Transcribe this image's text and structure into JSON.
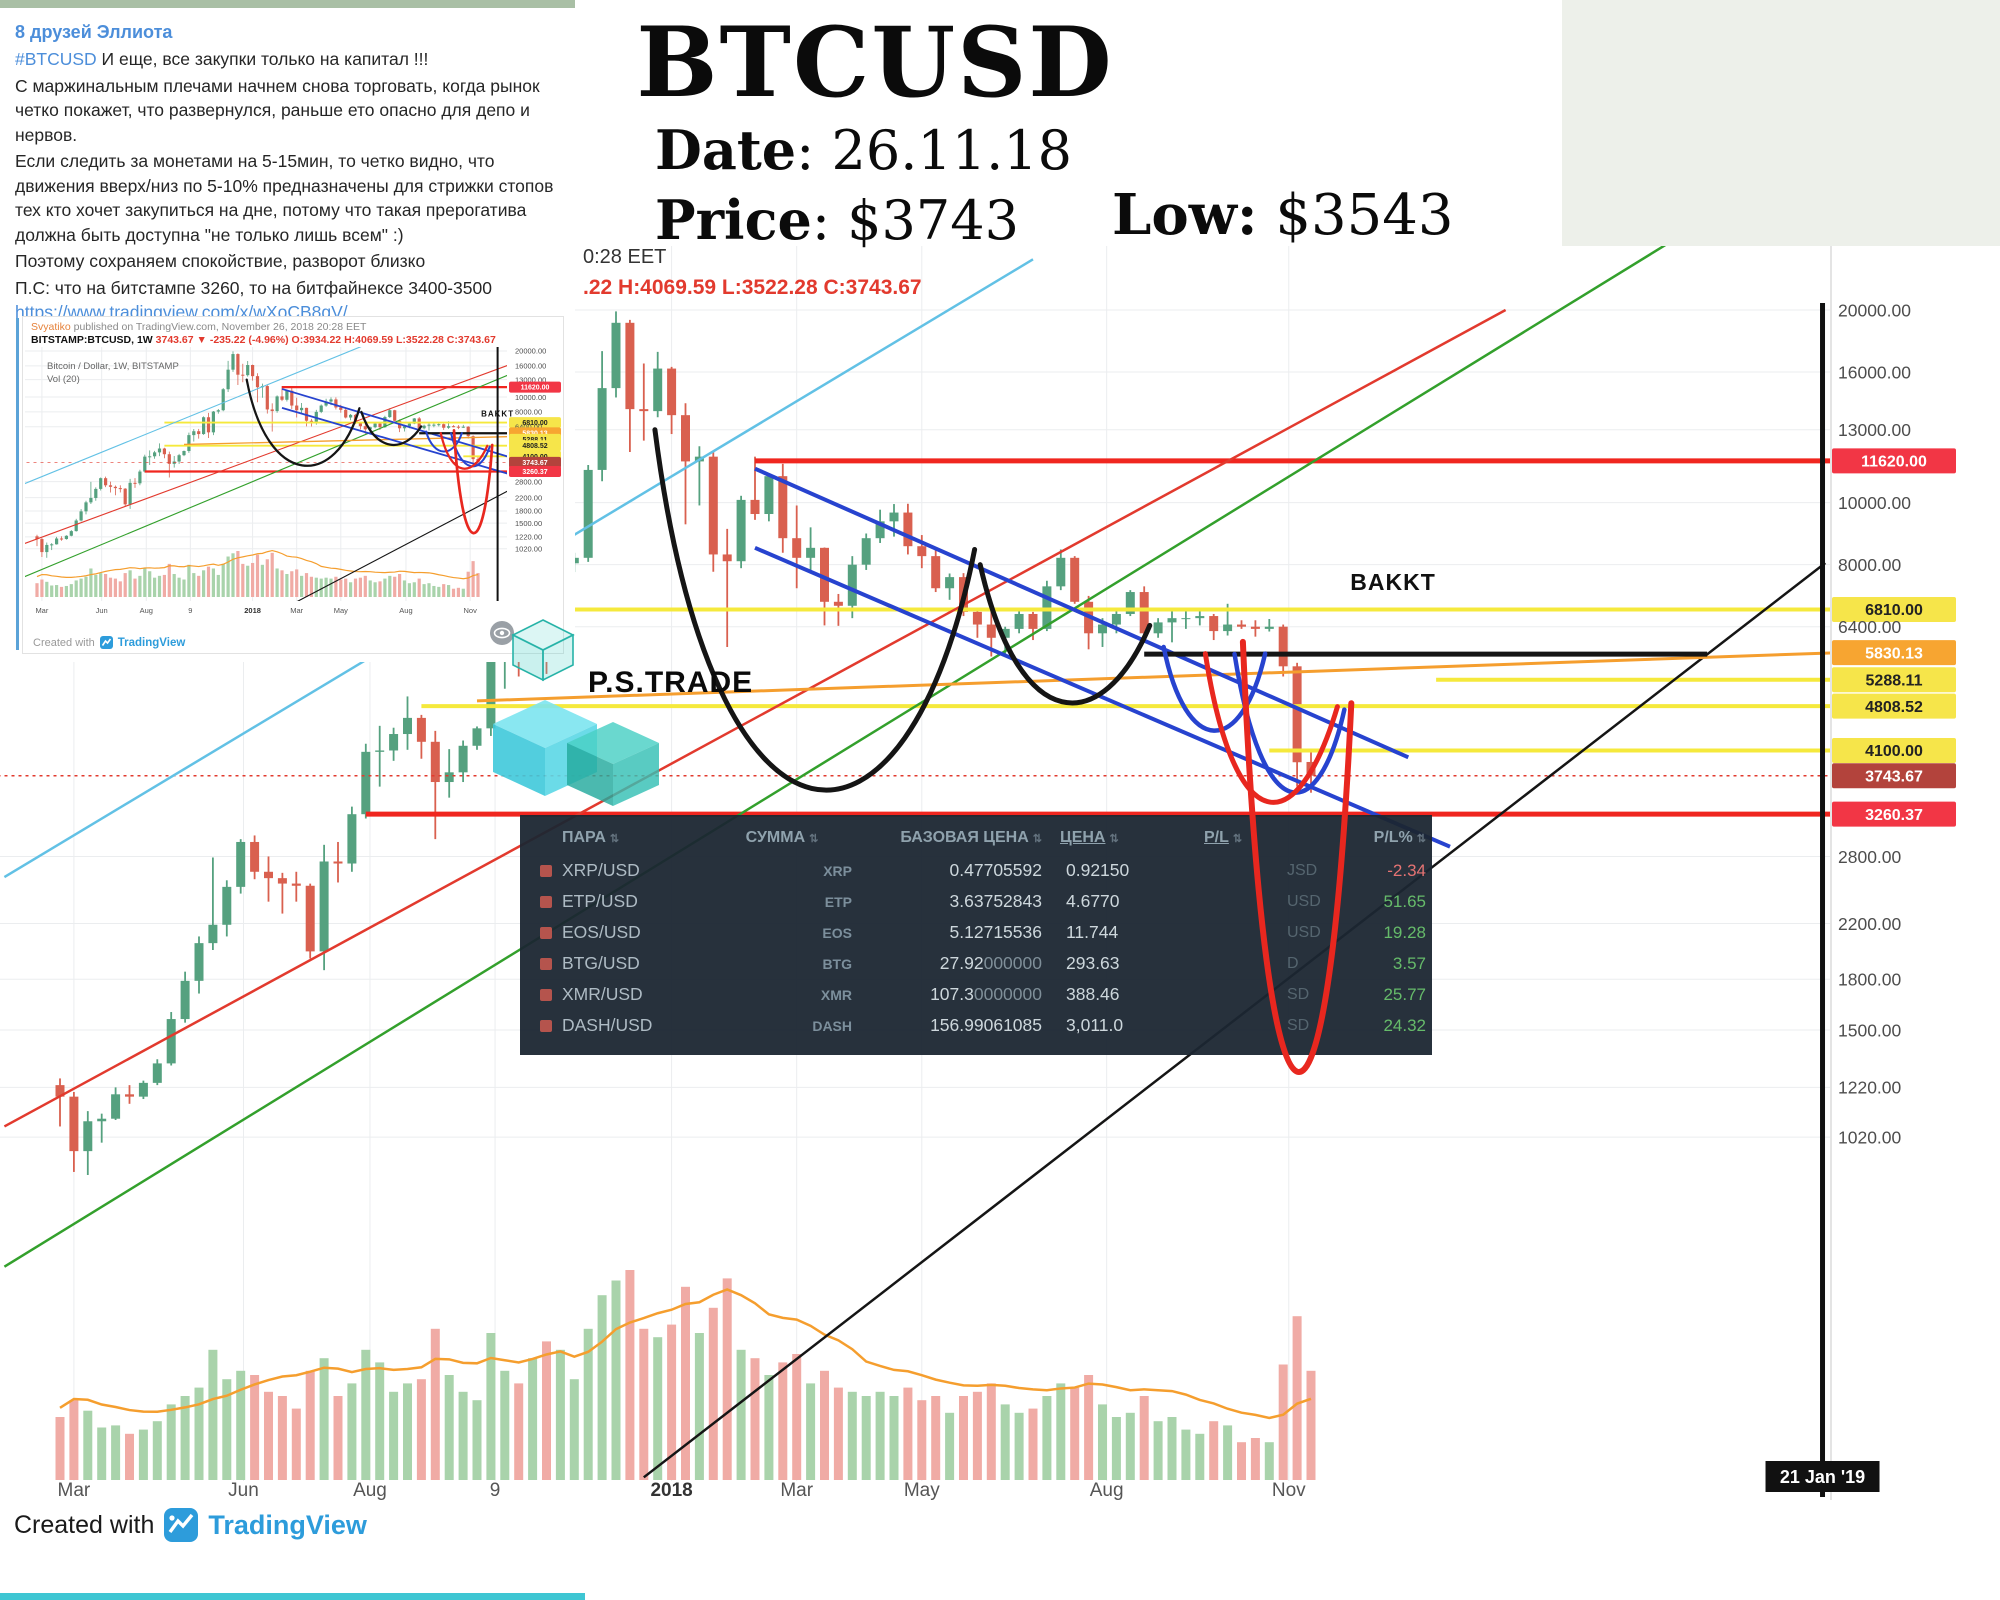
{
  "title_block": {
    "title": "BTCUSD",
    "date_label": "Date",
    "date_value": ": 26.11.18",
    "price_label": "Price",
    "price_value": ": $3743",
    "low_label": "Low:",
    "low_value": " $3543"
  },
  "chart_header": {
    "time_text": "0:28 EET",
    "ohlc_text": ".22 H:4069.59 L:3522.28 C:3743.67"
  },
  "message": {
    "channel": "8 друзей Эллиота",
    "hashtag": "#BTCUSD",
    "p1_rest": " И еще, все закупки только на капитал !!!",
    "p2": "С маржинальным плечами начнем снова торговать, когда рынок четко покажет, что развернулся, раньше ето опасно для депо и нервов.",
    "p3": "Если следить за монетами на 5-15мин, то четко видно, что движения вверх/низ по 5-10% предназначены для стрижки стопов тех кто хочет закупиться на дне, потому что такая прерогатива должна быть доступна \"не только лишь всем\" :)",
    "p4": "Поэтому сохраняем спокойствие, разворот близко",
    "p5": "П.С: что на битстампе 3260, то на битфайнексе 3400-3500",
    "link": "https://www.tradingview.com/x/wXoCB8gV/"
  },
  "thumbnail": {
    "attribution_user": "Svyatiko",
    "attribution_rest": " published on TradingView.com, November 26, 2018 20:28 EET",
    "symbol_line": "BITSTAMP:BTCUSD, 1W",
    "change_text": " 3743.67 ▼ -235.22 (-4.96%) ",
    "ohlc_text": "O:3934.22 H:4069.59 L:3522.28 C:3743.67",
    "legend_symbol": "Bitcoin / Dollar, 1W, BITSTAMP",
    "legend_vol": "Vol (20)",
    "created_with": "Created with",
    "tradingview": "TradingView"
  },
  "watermark": {
    "brand": "P.S.TRADE"
  },
  "footer": {
    "created_with": "Created with",
    "tradingview": "TradingView"
  },
  "table": {
    "headers": [
      "ПАРА",
      "СУММА",
      "БАЗОВАЯ ЦЕНА",
      "ЦЕНА",
      "P/L",
      "P/L%"
    ],
    "sort_icon": "⇅",
    "rows": [
      {
        "pair": "XRP/USD",
        "ticker": "XRP",
        "base": "0.47705592",
        "base_dim": "",
        "price": "0.92150",
        "ghost": "JSD",
        "pl": "-2.34",
        "dir": "neg"
      },
      {
        "pair": "ETP/USD",
        "ticker": "ETP",
        "base": "3.63752843",
        "base_dim": "",
        "price": "4.6770",
        "ghost": "USD",
        "pl": "51.65",
        "dir": "pos"
      },
      {
        "pair": "EOS/USD",
        "ticker": "EOS",
        "base": "5.12715536",
        "base_dim": "",
        "price": "11.744",
        "ghost": "USD",
        "pl": "19.28",
        "dir": "pos"
      },
      {
        "pair": "BTG/USD",
        "ticker": "BTG",
        "base": "27.92",
        "base_dim": "000000",
        "price": "293.63",
        "ghost": "D",
        "pl": "3.57",
        "dir": "pos"
      },
      {
        "pair": "XMR/USD",
        "ticker": "XMR",
        "base": "107.3",
        "base_dim": "0000000",
        "price": "388.46",
        "ghost": "SD",
        "pl": "25.77",
        "dir": "pos"
      },
      {
        "pair": "DASH/USD",
        "ticker": "DASH",
        "base": "156.99061085",
        "base_dim": "",
        "price": "3,011.0",
        "ghost": "SD",
        "pl": "24.32",
        "dir": "pos"
      }
    ]
  },
  "chart_data": {
    "type": "candlestick",
    "symbol": "BITSTAMP:BTCUSD",
    "timeframe": "1W",
    "last_ohlc": {
      "o": 3934.22,
      "h": 4069.59,
      "l": 3522.28,
      "c": 3743.67
    },
    "change_text": "-235.22 (-4.96%)",
    "bakkt_label": "BAKKT",
    "right_tag": "21 Jan '19",
    "ylog": true,
    "yrange": [
      1020,
      20000
    ],
    "axis_labels": [
      {
        "p": 20000,
        "t": "20000.00"
      },
      {
        "p": 16000,
        "t": "16000.00"
      },
      {
        "p": 13000,
        "t": "13000.00"
      },
      {
        "p": 11620,
        "t": "11620.00",
        "bg": "#f23645",
        "fg": "#ffffff"
      },
      {
        "p": 10000,
        "t": "10000.00"
      },
      {
        "p": 8000,
        "t": "8000.00"
      },
      {
        "p": 6810,
        "t": "6810.00",
        "bg": "#f6e54a",
        "fg": "#222222"
      },
      {
        "p": 6400,
        "t": "6400.00"
      },
      {
        "p": 5830.13,
        "t": "5830.13",
        "bg": "#f7a531",
        "fg": "#ffffff"
      },
      {
        "p": 5288.11,
        "t": "5288.11",
        "bg": "#f6e54a",
        "fg": "#222222"
      },
      {
        "p": 4808.52,
        "t": "4808.52",
        "bg": "#f6e54a",
        "fg": "#222222"
      },
      {
        "p": 4100,
        "t": "4100.00",
        "bg": "#f6e54a",
        "fg": "#222222"
      },
      {
        "p": 3743.67,
        "t": "3743.67",
        "bg": "#b3433c",
        "fg": "#ffffff"
      },
      {
        "p": 3260.37,
        "t": "3260.37",
        "bg": "#f23645",
        "fg": "#ffffff"
      },
      {
        "p": 2800,
        "t": "2800.00"
      },
      {
        "p": 2200,
        "t": "2200.00"
      },
      {
        "p": 1800,
        "t": "1800.00"
      },
      {
        "p": 1500,
        "t": "1500.00"
      },
      {
        "p": 1220,
        "t": "1220.00"
      },
      {
        "p": 1020,
        "t": "1020.00"
      }
    ],
    "month_labels": [
      {
        "t": "Mar",
        "i": 1
      },
      {
        "t": "Jun",
        "i": 13.2
      },
      {
        "t": "Aug",
        "i": 22.3
      },
      {
        "t": "9",
        "i": 31.3
      },
      {
        "t": "2018",
        "i": 44
      },
      {
        "t": "Mar",
        "i": 53
      },
      {
        "t": "May",
        "i": 62
      },
      {
        "t": "Aug",
        "i": 75.3
      },
      {
        "t": "Nov",
        "i": 88.4
      }
    ],
    "candles": [
      [
        1230,
        1260,
        1060,
        1180,
        0.3
      ],
      [
        1180,
        1200,
        900,
        970,
        0.38
      ],
      [
        970,
        1120,
        890,
        1080,
        0.33
      ],
      [
        1080,
        1110,
        1000,
        1090,
        0.25
      ],
      [
        1090,
        1220,
        1085,
        1190,
        0.26
      ],
      [
        1190,
        1230,
        1150,
        1180,
        0.22
      ],
      [
        1180,
        1250,
        1170,
        1240,
        0.24
      ],
      [
        1240,
        1350,
        1230,
        1330,
        0.28
      ],
      [
        1330,
        1600,
        1320,
        1560,
        0.36
      ],
      [
        1560,
        1850,
        1540,
        1790,
        0.4
      ],
      [
        1790,
        2100,
        1710,
        2050,
        0.44
      ],
      [
        2050,
        2790,
        2000,
        2190,
        0.62
      ],
      [
        2190,
        2570,
        2100,
        2510,
        0.48
      ],
      [
        2510,
        2980,
        2450,
        2950,
        0.52
      ],
      [
        2950,
        3020,
        2580,
        2650,
        0.5
      ],
      [
        2650,
        2800,
        2380,
        2590,
        0.42
      ],
      [
        2590,
        2640,
        2280,
        2540,
        0.4
      ],
      [
        2540,
        2650,
        2380,
        2520,
        0.34
      ],
      [
        2520,
        2540,
        1940,
        1990,
        0.52
      ],
      [
        1990,
        2920,
        1860,
        2750,
        0.58
      ],
      [
        2750,
        2950,
        2550,
        2730,
        0.4
      ],
      [
        2730,
        3350,
        2650,
        3260,
        0.46
      ],
      [
        3260,
        4200,
        3210,
        4080,
        0.62
      ],
      [
        4080,
        4480,
        3600,
        4100,
        0.56
      ],
      [
        4100,
        4450,
        3950,
        4350,
        0.42
      ],
      [
        4350,
        4980,
        4110,
        4610,
        0.46
      ],
      [
        4610,
        4660,
        3980,
        4230,
        0.48
      ],
      [
        4230,
        4400,
        2980,
        3660,
        0.72
      ],
      [
        3660,
        4120,
        3460,
        3790,
        0.5
      ],
      [
        3790,
        4250,
        3660,
        4170,
        0.42
      ],
      [
        4170,
        4470,
        4110,
        4440,
        0.38
      ],
      [
        4440,
        5860,
        4320,
        5640,
        0.7
      ],
      [
        5640,
        6180,
        5120,
        5980,
        0.52
      ],
      [
        5980,
        6190,
        5350,
        5730,
        0.46
      ],
      [
        5730,
        7480,
        5660,
        7380,
        0.58
      ],
      [
        7380,
        7880,
        5400,
        5880,
        0.66
      ],
      [
        5880,
        8100,
        5640,
        8040,
        0.62
      ],
      [
        8040,
        8350,
        7790,
        8200,
        0.48
      ],
      [
        8200,
        11450,
        8080,
        11250,
        0.72
      ],
      [
        11250,
        17250,
        10800,
        15100,
        0.88
      ],
      [
        15100,
        19900,
        14600,
        19100,
        0.95
      ],
      [
        19100,
        19300,
        12000,
        14000,
        1.0
      ],
      [
        14000,
        16500,
        12500,
        13900,
        0.72
      ],
      [
        13900,
        17200,
        13600,
        16200,
        0.68
      ],
      [
        16200,
        16300,
        12800,
        13700,
        0.74
      ],
      [
        13700,
        14300,
        9250,
        11600,
        0.92
      ],
      [
        11600,
        12250,
        9900,
        11800,
        0.7
      ],
      [
        11800,
        12000,
        7800,
        8300,
        0.82
      ],
      [
        8300,
        9100,
        5950,
        8100,
        0.96
      ],
      [
        8100,
        10250,
        7900,
        10100,
        0.62
      ],
      [
        10100,
        11800,
        9400,
        9600,
        0.58
      ],
      [
        9600,
        11100,
        9350,
        11000,
        0.5
      ],
      [
        11000,
        11500,
        8350,
        8800,
        0.56
      ],
      [
        8800,
        9900,
        7350,
        8200,
        0.6
      ],
      [
        8200,
        9150,
        7750,
        8500,
        0.46
      ],
      [
        8500,
        8510,
        6430,
        7000,
        0.52
      ],
      [
        7000,
        7200,
        6420,
        6900,
        0.44
      ],
      [
        6900,
        8250,
        6600,
        8000,
        0.42
      ],
      [
        8000,
        8950,
        7850,
        8800,
        0.4
      ],
      [
        8800,
        9750,
        8650,
        9350,
        0.42
      ],
      [
        9350,
        9950,
        8850,
        9650,
        0.4
      ],
      [
        9650,
        9960,
        8300,
        8550,
        0.44
      ],
      [
        8550,
        8900,
        7900,
        8250,
        0.38
      ],
      [
        8250,
        8500,
        7250,
        7350,
        0.4
      ],
      [
        7350,
        7750,
        7050,
        7650,
        0.32
      ],
      [
        7650,
        7760,
        6650,
        6750,
        0.4
      ],
      [
        6750,
        6830,
        6150,
        6450,
        0.42
      ],
      [
        6450,
        6800,
        5750,
        6150,
        0.46
      ],
      [
        6150,
        6400,
        5800,
        6350,
        0.36
      ],
      [
        6350,
        6850,
        6250,
        6700,
        0.32
      ],
      [
        6700,
        6750,
        6100,
        6350,
        0.34
      ],
      [
        6350,
        7550,
        6300,
        7400,
        0.4
      ],
      [
        7400,
        8450,
        7300,
        8200,
        0.46
      ],
      [
        8200,
        8250,
        6950,
        7000,
        0.44
      ],
      [
        7000,
        7150,
        5900,
        6250,
        0.5
      ],
      [
        6250,
        6600,
        5950,
        6450,
        0.36
      ],
      [
        6450,
        6850,
        6250,
        6700,
        0.3
      ],
      [
        6700,
        7300,
        6650,
        7250,
        0.32
      ],
      [
        7250,
        7400,
        6150,
        6250,
        0.4
      ],
      [
        6250,
        6600,
        6150,
        6500,
        0.28
      ],
      [
        6500,
        6850,
        6050,
        6600,
        0.3
      ],
      [
        6600,
        6830,
        6350,
        6600,
        0.24
      ],
      [
        6600,
        6800,
        6430,
        6650,
        0.22
      ],
      [
        6650,
        6700,
        6100,
        6300,
        0.28
      ],
      [
        6300,
        6950,
        6200,
        6450,
        0.26
      ],
      [
        6450,
        6550,
        6350,
        6400,
        0.18
      ],
      [
        6400,
        6550,
        6175,
        6350,
        0.2
      ],
      [
        6350,
        6580,
        6290,
        6400,
        0.18
      ],
      [
        6400,
        6450,
        5350,
        5550,
        0.55
      ],
      [
        5550,
        5620,
        3600,
        3930,
        0.78
      ],
      [
        3934,
        4070,
        3522,
        3744,
        0.52
      ]
    ],
    "decorations": {
      "lines": [
        {
          "p": 11620,
          "i1": 50,
          "i2": 128,
          "c": "#f0261f",
          "w": 5
        },
        {
          "p": 3260.37,
          "i1": 22,
          "i2": 128,
          "c": "#f0261f",
          "w": 5
        },
        {
          "p": 6810,
          "i1": 26,
          "i2": 128,
          "c": "#f5e93c",
          "w": 4
        },
        {
          "p": 4808.52,
          "i1": 26,
          "i2": 128,
          "c": "#f5e93c",
          "w": 4
        },
        {
          "p": 5288.11,
          "i1": 99,
          "i2": 128,
          "c": "#f5e93c",
          "w": 4
        },
        {
          "p": 4100,
          "i1": 87,
          "i2": 128,
          "c": "#f5e93c",
          "w": 4
        },
        {
          "p": 3743.67,
          "i1": -5,
          "i2": 128,
          "c": "#e23a2e",
          "w": 1.5,
          "dash": "3 4"
        },
        {
          "a": [
            -4,
            1060
          ],
          "b": [
            104,
            20000
          ],
          "c": "#e23a2e",
          "w": 2.5
        },
        {
          "a": [
            -4,
            640
          ],
          "b": [
            127,
            36000
          ],
          "c": "#33a02c",
          "w": 2.5
        },
        {
          "a": [
            -4,
            2600
          ],
          "b": [
            70,
            24000
          ],
          "c": "#62c1e5",
          "w": 2.5
        },
        {
          "a": [
            42,
            300
          ],
          "b": [
            127,
            8050
          ],
          "c": "#151515",
          "w": 2.5
        },
        {
          "a": [
            30,
            4900
          ],
          "b": [
            128,
            5830
          ],
          "c": "#f59e2e",
          "w": 3
        },
        {
          "a": [
            50,
            11300
          ],
          "b": [
            97,
            4000
          ],
          "c": "#2743cf",
          "w": 4
        },
        {
          "a": [
            50,
            8500
          ],
          "b": [
            100,
            2900
          ],
          "c": "#2743cf",
          "w": 4
        },
        {
          "a": [
            78,
            5800
          ],
          "b": [
            118.5,
            5800
          ],
          "c": "#151515",
          "w": 5
        }
      ],
      "curves": [
        {
          "pts": [
            [
              42.8,
              13000
            ],
            [
              47,
              2500
            ],
            [
              61,
              2500
            ],
            [
              65.8,
              8450
            ]
          ],
          "c": "#151515",
          "w": 5
        },
        {
          "pts": [
            [
              66.2,
              8000
            ],
            [
              69,
              4300
            ],
            [
              75,
              4300
            ],
            [
              78.4,
              6430
            ]
          ],
          "c": "#151515",
          "w": 5
        },
        {
          "pts": [
            [
              79.4,
              5950
            ],
            [
              81,
              4000
            ],
            [
              85,
              4000
            ],
            [
              86.7,
              5810
            ]
          ],
          "c": "#2743cf",
          "w": 4.5
        },
        {
          "pts": [
            [
              84.5,
              5800
            ],
            [
              86.5,
              3100
            ],
            [
              90.5,
              3100
            ],
            [
              92.4,
              4750
            ]
          ],
          "c": "#2743cf",
          "w": 4.5
        },
        {
          "pts": [
            [
              82.4,
              5810
            ],
            [
              84.5,
              2950
            ],
            [
              89,
              2950
            ],
            [
              91.9,
              4800
            ]
          ],
          "c": "#e8271f",
          "w": 5,
          "top": true
        },
        {
          "pts": [
            [
              85.1,
              6060
            ],
            [
              86.8,
              800
            ],
            [
              91.2,
              800
            ],
            [
              92.9,
              4860
            ]
          ],
          "c": "#e8271f",
          "w": 6,
          "top": true
        }
      ]
    },
    "colors": {
      "up": "#55a17f",
      "down": "#d9604f",
      "volUp": "#a9d3ab",
      "volDown": "#f0aba5",
      "volMA": "#f59e2e",
      "grid": "#ebedef",
      "axisText": "#4d4d4d",
      "level_red": "#f0261f",
      "level_yellow": "#f5e93c",
      "level_orange": "#f7a531",
      "channel_blue": "#2743cf"
    }
  }
}
